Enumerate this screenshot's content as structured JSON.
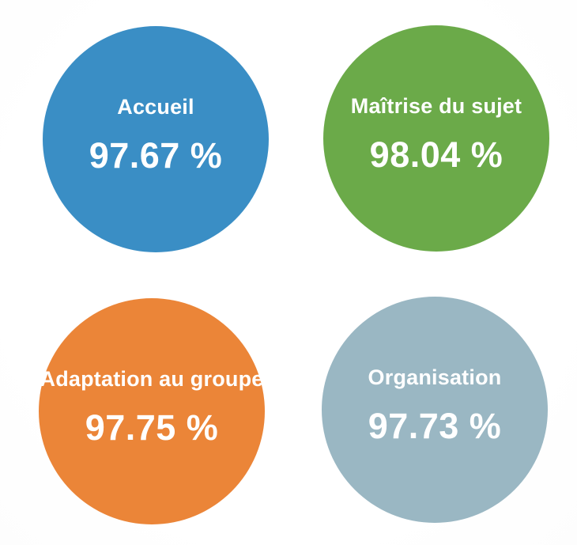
{
  "page": {
    "background_color": "#ffffff",
    "text_color": "#ffffff"
  },
  "chart_data": {
    "type": "table",
    "variant": "kpi-circles",
    "categories": [
      "Accueil",
      "Maîtrise du sujet",
      "Adaptation au groupe",
      "Organisation"
    ],
    "values": [
      97.67,
      98.04,
      97.75,
      97.73
    ],
    "unit": "%",
    "colors": [
      "#3a8ec5",
      "#6baa49",
      "#eb8538",
      "#9ab7c3"
    ],
    "legend_position": "none",
    "grid": false
  },
  "circles": [
    {
      "label": "Accueil",
      "value": "97.67 %",
      "color": "#3a8ec5"
    },
    {
      "label": "Maîtrise du sujet",
      "value": "98.04 %",
      "color": "#6baa49"
    },
    {
      "label": "Adaptation au groupe",
      "value": "97.75 %",
      "color": "#eb8538"
    },
    {
      "label": "Organisation",
      "value": "97.73 %",
      "color": "#9ab7c3"
    }
  ]
}
